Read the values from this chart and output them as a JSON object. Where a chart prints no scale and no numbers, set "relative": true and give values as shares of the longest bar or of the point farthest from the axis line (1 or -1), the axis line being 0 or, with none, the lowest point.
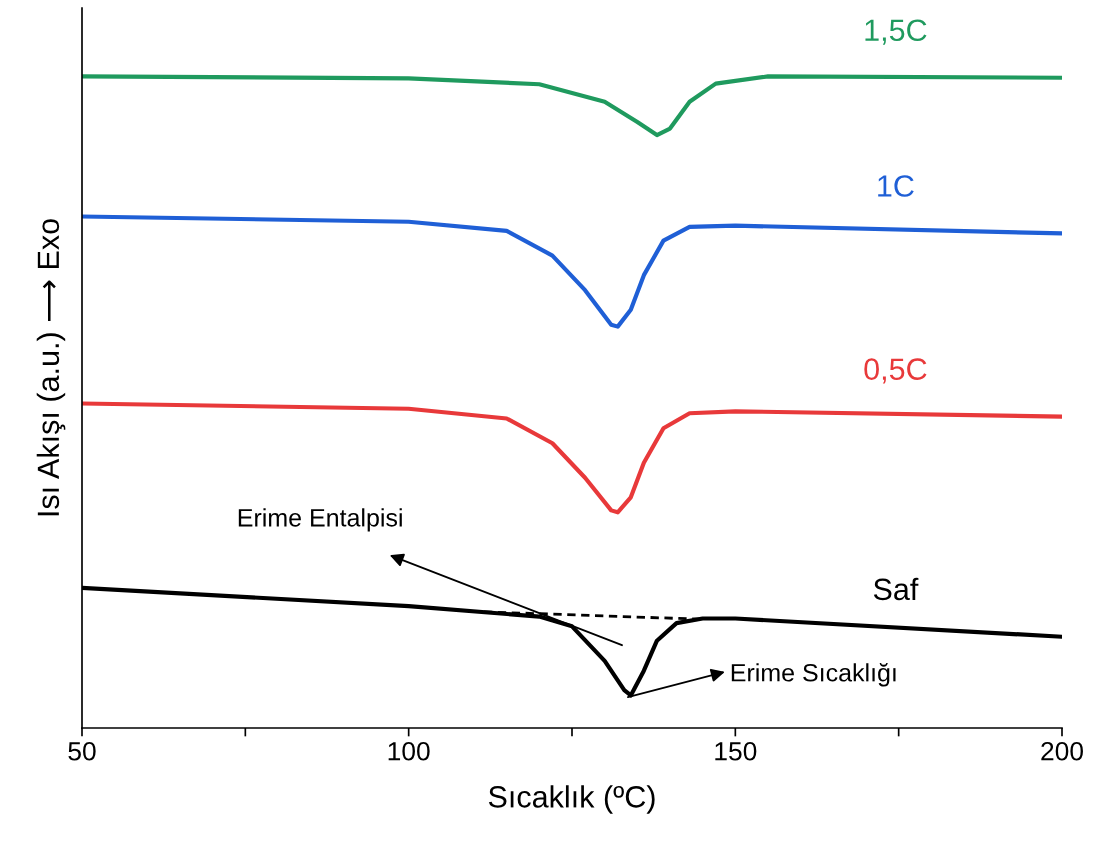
{
  "chart_data": {
    "type": "line",
    "relative": true,
    "xlabel": "Sıcaklık (ºC)",
    "ylabel": "Isı Akışı (a.u.) ⟶ Exo",
    "xlim": [
      50,
      200
    ],
    "xticks": [
      50,
      {
        "value": 75,
        "label": null
      },
      100,
      {
        "value": 125,
        "label": null
      },
      150,
      {
        "value": 175,
        "label": null
      },
      200
    ],
    "series": [
      {
        "name": "1,5C",
        "color": "#1f9a5e",
        "x": [
          50,
          100,
          120,
          130,
          135,
          138,
          140,
          143,
          147,
          155,
          200
        ],
        "values": [
          1.0,
          0.997,
          0.988,
          0.961,
          0.93,
          0.91,
          0.92,
          0.961,
          0.989,
          1.0,
          0.998
        ]
      },
      {
        "name": "1C",
        "color": "#1f5fd6",
        "x": [
          50,
          100,
          115,
          122,
          127,
          131,
          132,
          134,
          136,
          139,
          143,
          150,
          200
        ],
        "values": [
          0.785,
          0.777,
          0.763,
          0.725,
          0.672,
          0.619,
          0.616,
          0.642,
          0.695,
          0.748,
          0.769,
          0.771,
          0.759
        ]
      },
      {
        "name": "0,5C",
        "color": "#e8393a",
        "x": [
          50,
          100,
          115,
          122,
          127,
          131,
          132,
          134,
          136,
          139,
          143,
          150,
          200
        ],
        "values": [
          0.498,
          0.49,
          0.475,
          0.437,
          0.384,
          0.334,
          0.331,
          0.354,
          0.407,
          0.46,
          0.483,
          0.486,
          0.478
        ]
      },
      {
        "name": "Saf",
        "color": "#000000",
        "x": [
          50,
          100,
          120,
          125,
          130,
          133,
          134,
          136,
          138,
          141,
          145,
          150,
          200
        ],
        "values": [
          0.215,
          0.187,
          0.171,
          0.156,
          0.103,
          0.058,
          0.05,
          0.088,
          0.134,
          0.161,
          0.168,
          0.168,
          0.14
        ]
      },
      {
        "color": "#000000",
        "line_style": "dashed",
        "x": [
          109.4,
          144.6
        ],
        "values": [
          0.179,
          0.167
        ]
      }
    ],
    "annotations": [
      "Erime Entalpisi",
      "Erime Sıcaklığı"
    ]
  }
}
